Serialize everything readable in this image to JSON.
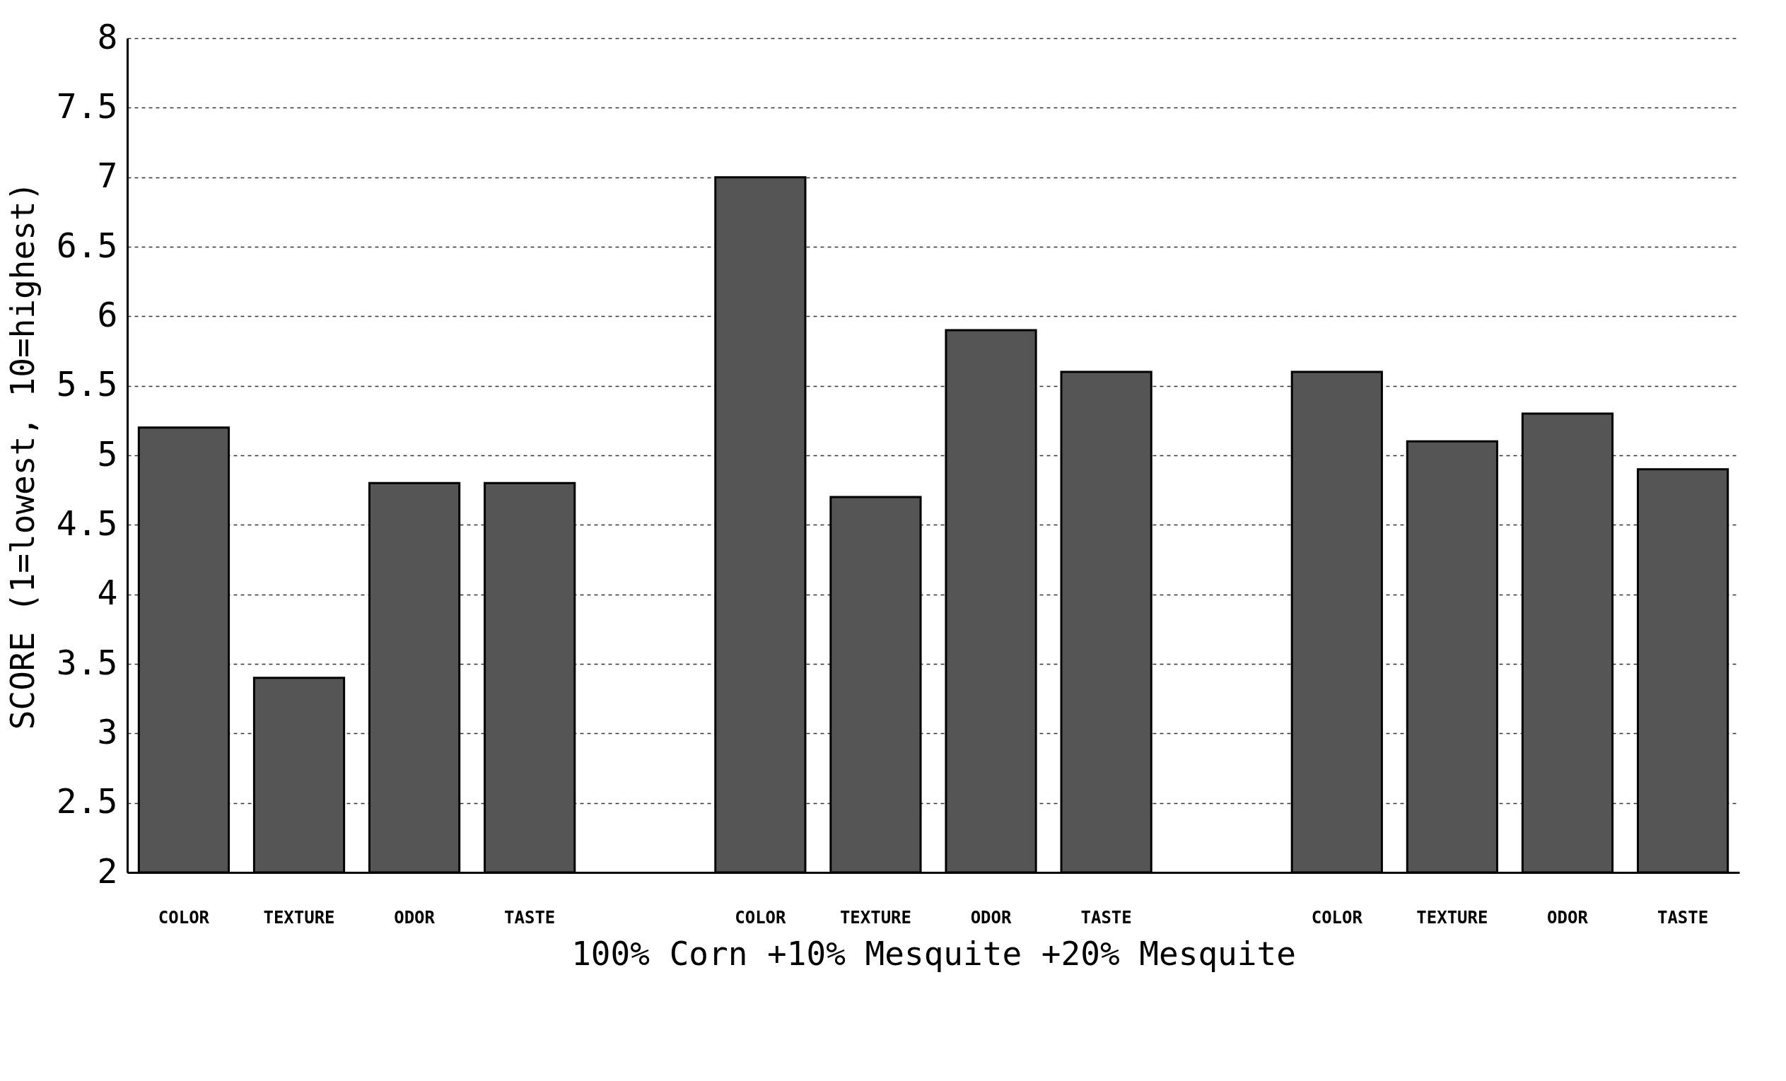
{
  "chart_data": {
    "type": "bar",
    "xlabel": "100% Corn   +10% Mesquite   +20% Mesquite",
    "ylabel": "SCORE (1=lowest, 10=highest)",
    "categories": [
      "COLOR",
      "TEXTURE",
      "ODOR",
      "TASTE",
      null,
      "COLOR",
      "TEXTURE",
      "ODOR",
      "TASTE",
      null,
      "COLOR",
      "TEXTURE",
      "ODOR",
      "TASTE"
    ],
    "values": [
      5.2,
      3.4,
      4.8,
      4.8,
      null,
      7.0,
      4.7,
      5.9,
      5.6,
      null,
      5.6,
      5.1,
      5.3,
      4.9
    ],
    "color": "#555555",
    "ylim": [
      2,
      8
    ],
    "yticks": [
      2,
      2.5,
      3,
      3.5,
      4,
      4.5,
      5,
      5.5,
      6,
      6.5,
      7,
      7.5,
      8
    ],
    "grid": "y"
  }
}
